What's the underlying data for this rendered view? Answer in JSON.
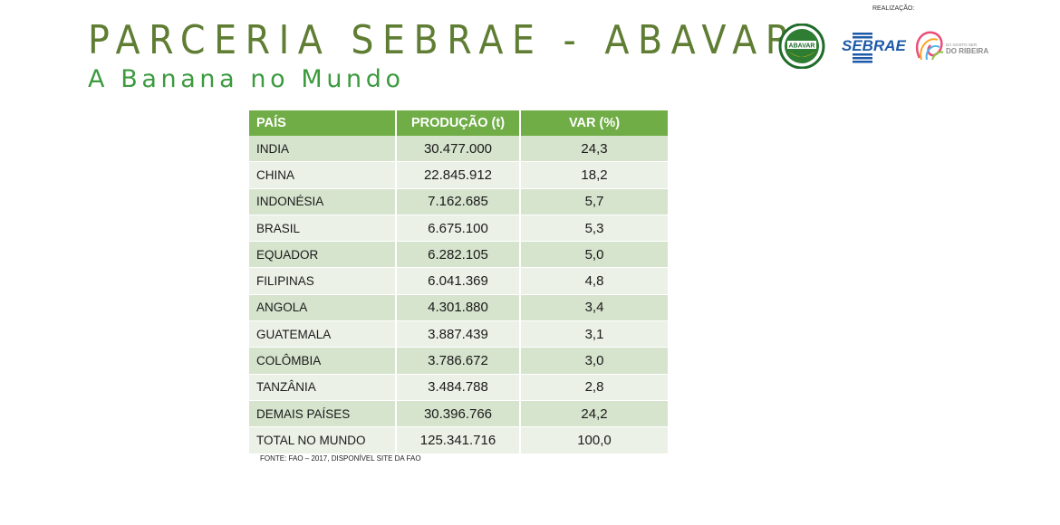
{
  "header": {
    "title": "PARCERIA SEBRAE - ABAVAR",
    "subtitle": "A Banana no Mundo"
  },
  "logos": {
    "label": "REALIZAÇÃO:",
    "abavar": "ABAVAR",
    "sebrae": "SEBRAE",
    "ribeira_small": "DÁ GOSTO SER",
    "ribeira_big": "DO RIBEIRA"
  },
  "table": {
    "headers": [
      "PAÍS",
      "PRODUÇÃO (t)",
      "VAR (%)"
    ],
    "rows": [
      [
        "INDIA",
        "30.477.000",
        "24,3"
      ],
      [
        "CHINA",
        "22.845.912",
        "18,2"
      ],
      [
        "INDONÉSIA",
        "7.162.685",
        "5,7"
      ],
      [
        "BRASIL",
        "6.675.100",
        "5,3"
      ],
      [
        "EQUADOR",
        "6.282.105",
        "5,0"
      ],
      [
        "FILIPINAS",
        "6.041.369",
        "4,8"
      ],
      [
        "ANGOLA",
        "4.301.880",
        "3,4"
      ],
      [
        "GUATEMALA",
        "3.887.439",
        "3,1"
      ],
      [
        "COLÔMBIA",
        "3.786.672",
        "3,0"
      ],
      [
        "TANZÂNIA",
        "3.484.788",
        "2,8"
      ],
      [
        "DEMAIS PAÍSES",
        "30.396.766",
        "24,2"
      ],
      [
        "TOTAL NO MUNDO",
        "125.341.716",
        "100,0"
      ]
    ]
  },
  "footer": {
    "source": "FONTE: FAO – 2017, DISPONÍVEL SITE DA FAO"
  },
  "colors": {
    "title": "#5f7d33",
    "subtitle": "#3c9a3f",
    "table_header": "#70ad47",
    "row_dark": "#d6e3cd",
    "row_light": "#ebf1e7",
    "sebrae_blue": "#1d5aa8"
  }
}
